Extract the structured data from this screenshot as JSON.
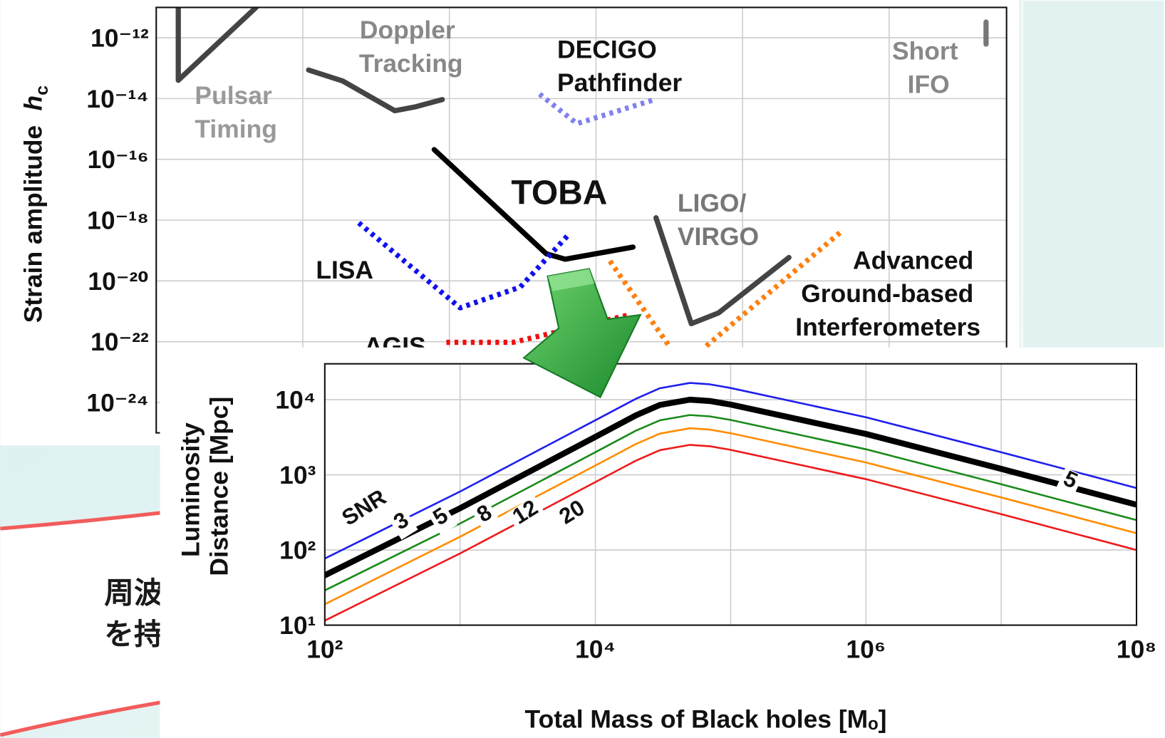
{
  "chart_data": [
    {
      "type": "line",
      "y_label": "Strain amplitude hc",
      "log_x": true,
      "log_y": true,
      "grid": true,
      "xlim": [
        1e-09,
        400
      ],
      "minor_xticks": [
        1e-07,
        1e-05,
        0.001,
        0.1,
        10
      ],
      "ylim": [
        1e-25,
        1e-11
      ],
      "yticks": [
        {
          "value": 1e-12,
          "label": "10⁻¹²"
        },
        {
          "value": 1e-14,
          "label": "10⁻¹⁴"
        },
        {
          "value": 1e-16,
          "label": "10⁻¹⁶"
        },
        {
          "value": 1e-18,
          "label": "10⁻¹⁸"
        },
        {
          "value": 1e-20,
          "label": "10⁻²⁰"
        },
        {
          "value": 1e-22,
          "label": "10⁻²²"
        },
        {
          "value": 1e-24,
          "label": "10⁻²⁴"
        }
      ],
      "series": [
        {
          "name": "Pulsar Timing",
          "color": "#444444",
          "style": "solid",
          "x": [
            2e-09,
            2e-09,
            2.3e-08
          ],
          "values": [
            1e-11,
            4e-14,
            1e-11
          ]
        },
        {
          "name": "Doppler Tracking",
          "color": "#444444",
          "style": "solid",
          "x": [
            1.2e-07,
            3.5e-07,
            1.8e-06,
            3.5e-06,
            8e-06
          ],
          "values": [
            8.7e-14,
            3.8e-14,
            4e-15,
            5.4e-15,
            9.3e-15
          ]
        },
        {
          "name": "DECIGO Pathfinder",
          "color": "#8080ee",
          "style": "dotted",
          "x": [
            0.00017,
            0.00055,
            0.0063
          ],
          "values": [
            1.4e-14,
            1.5e-15,
            9.3e-15
          ]
        },
        {
          "name": "TOBA",
          "color": "#000000",
          "style": "solid",
          "x": [
            6.2e-06,
            0.00021,
            0.00038,
            0.0032
          ],
          "values": [
            2.1e-16,
            7.8e-20,
            5.2e-20,
            1.3e-19
          ]
        },
        {
          "name": "LISA",
          "color": "#1010ee",
          "style": "dotted",
          "x": [
            5.8e-07,
            1.4e-05,
            9.3e-05,
            0.00043
          ],
          "values": [
            8.1e-19,
            1.3e-21,
            6.3e-21,
            3.5e-19
          ]
        },
        {
          "name": "LIGO/ VIRGO",
          "color": "#444444",
          "style": "solid",
          "x": [
            0.0066,
            0.02,
            0.047,
            0.43
          ],
          "values": [
            1.2e-18,
            3.9e-22,
            8.9e-22,
            5.9e-20
          ]
        },
        {
          "name": "Advanced Ground-based Interferometers",
          "color": "#ff7f0e",
          "style": "dotted",
          "x": [
            0.00155,
            0.01,
            0.02,
            0.032,
            2.2
          ],
          "values": [
            4.5e-20,
            7.2e-23,
            null,
            7.2e-23,
            4.1e-19
          ]
        },
        {
          "name": "AGIS",
          "color": "#ee1010",
          "style": "dotted",
          "x": [
            9.1e-06,
            7.4e-05,
            0.0028
          ],
          "values": [
            9.5e-23,
            9.5e-23,
            7.6e-22
          ]
        },
        {
          "name": "Short IFO",
          "color": "#777777",
          "style": "solid",
          "x": [
            210,
            210
          ],
          "values": [
            3.3e-12,
            6.2e-13
          ]
        }
      ]
    },
    {
      "type": "line",
      "x_label": "Total Mass of Black holes  [Mₒ]",
      "y_label": "Luminosity Distance [Mpc]",
      "curve_label_title": "SNR",
      "log_x": true,
      "log_y": true,
      "grid": true,
      "xlim": [
        100,
        100000000
      ],
      "xticks": [
        {
          "value": 100,
          "label": "10²"
        },
        {
          "value": 10000,
          "label": "10⁴"
        },
        {
          "value": 1000000,
          "label": "10⁶"
        },
        {
          "value": 100000000,
          "label": "10⁸"
        }
      ],
      "minor_xticks": [
        1000,
        100000,
        10000000
      ],
      "ylim": [
        10,
        30000
      ],
      "yticks": [
        {
          "value": 10,
          "label": "10¹"
        },
        {
          "value": 100,
          "label": "10²"
        },
        {
          "value": 1000,
          "label": "10³"
        },
        {
          "value": 10000,
          "label": "10⁴"
        }
      ],
      "x": [
        100,
        1000,
        10000,
        20000,
        30000,
        50000,
        70000,
        100000,
        1000000,
        10000000,
        100000000
      ],
      "series": [
        {
          "name": "3",
          "color": "#1f1fee",
          "style": "solid",
          "values": [
            77,
            600,
            5330,
            10300,
            14200,
            16700,
            16000,
            14300,
            5830,
            2000,
            667
          ]
        },
        {
          "name": "5",
          "color": "#000000",
          "style": "thick",
          "values": [
            46,
            360,
            3200,
            6200,
            8500,
            10000,
            9600,
            8600,
            3500,
            1200,
            400
          ]
        },
        {
          "name": "8",
          "color": "#1a8a1a",
          "style": "solid",
          "values": [
            29,
            225,
            2000,
            3880,
            5310,
            6250,
            6000,
            5380,
            2190,
            750,
            250
          ]
        },
        {
          "name": "12",
          "color": "#ff8c00",
          "style": "solid",
          "values": [
            19,
            150,
            1330,
            2580,
            3540,
            4170,
            4000,
            3580,
            1460,
            500,
            167
          ]
        },
        {
          "name": "20",
          "color": "#ee1a1a",
          "style": "solid",
          "values": [
            11.5,
            90,
            800,
            1550,
            2130,
            2500,
            2400,
            2150,
            875,
            300,
            100
          ]
        }
      ]
    }
  ],
  "callout": {
    "lines": [
      "周波で",
      "を持つ"
    ]
  }
}
